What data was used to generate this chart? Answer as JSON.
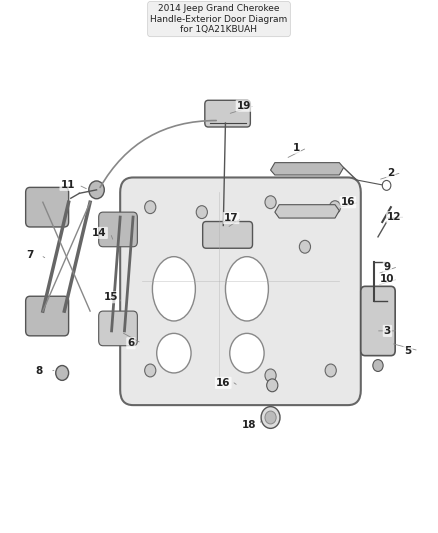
{
  "title": "2014 Jeep Grand Cherokee\nHandle-Exterior Door Diagram\nfor 1QA21KBUAH",
  "background_color": "#ffffff",
  "fig_width": 4.38,
  "fig_height": 5.33,
  "dpi": 100,
  "label_fontsize": 7.5,
  "label_color": "#222222",
  "line_color": "#555555",
  "component_color": "#888888"
}
